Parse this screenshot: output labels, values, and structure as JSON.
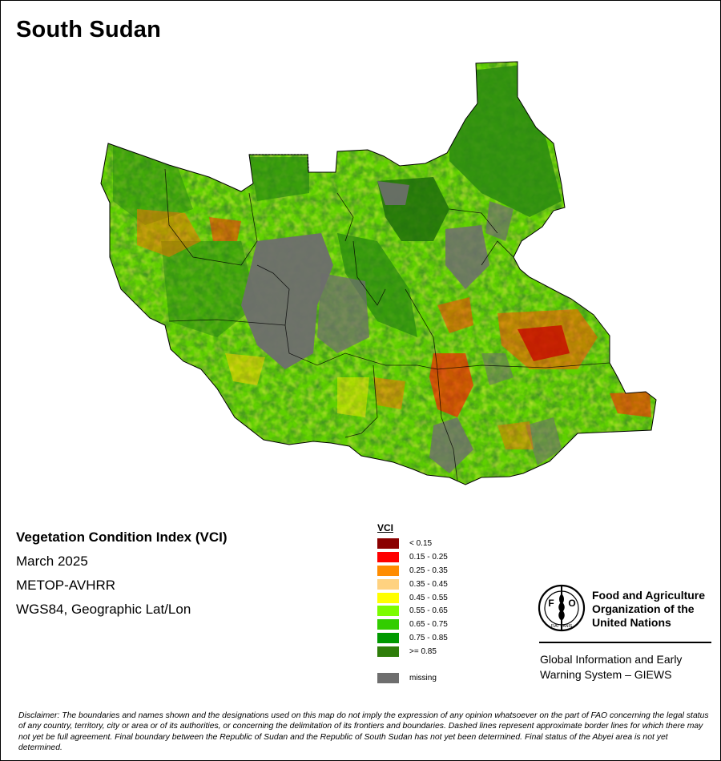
{
  "map": {
    "title": "South Sudan"
  },
  "info": {
    "product": "Vegetation Condition Index (VCI)",
    "period": "March 2025",
    "sensor": "METOP-AVHRR",
    "projection": "WGS84, Geographic Lat/Lon"
  },
  "legend": {
    "title": "VCI",
    "classes": [
      {
        "label": "< 0.15",
        "color": "#8b0000"
      },
      {
        "label": "0.15 - 0.25",
        "color": "#ff0000"
      },
      {
        "label": "0.25 - 0.35",
        "color": "#ff8c00"
      },
      {
        "label": "0.35 - 0.45",
        "color": "#ffd280"
      },
      {
        "label": "0.45 - 0.55",
        "color": "#ffff00"
      },
      {
        "label": "0.55 - 0.65",
        "color": "#7cfc00"
      },
      {
        "label": "0.65 - 0.75",
        "color": "#32cd00"
      },
      {
        "label": "0.75 - 0.85",
        "color": "#009900"
      },
      {
        "label": ">= 0.85",
        "color": "#2e7d0a"
      }
    ],
    "missing": {
      "label": "missing",
      "color": "#6e6e6e"
    }
  },
  "organization": {
    "emblem_letters": [
      "F",
      "A",
      "O"
    ],
    "emblem_motto": "FIAT PANIS",
    "name_lines": [
      "Food and Agriculture",
      "Organization of the",
      "United Nations"
    ],
    "system_lines": [
      "Global Information and Early",
      "Warning System – GIEWS"
    ]
  },
  "disclaimer": "Disclaimer: The boundaries and names shown and the designations used on this map do not imply the expression of any opinion whatsoever on the part of FAO concerning the legal status of any country, territory, city or area or of its authorities, or concerning the delimitation of its frontiers and boundaries. Dashed lines represent approximate border lines for which there may not yet be full agreement.  Final boundary between the Republic of Sudan and the Republic of South Sudan has not yet been determined. Final status of the Abyei area is not yet determined."
}
